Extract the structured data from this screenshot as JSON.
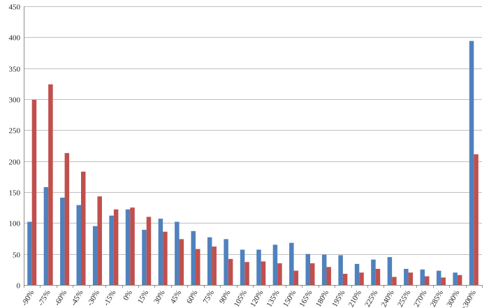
{
  "chart_data": {
    "type": "bar",
    "categories": [
      "-90%",
      "-75%",
      "-60%",
      "-45%",
      "-30%",
      "-15%",
      "0%",
      "15%",
      "30%",
      "45%",
      "60%",
      "75%",
      "90%",
      "105%",
      "120%",
      "135%",
      "150%",
      "165%",
      "180%",
      "195%",
      "210%",
      "225%",
      "240%",
      "255%",
      "270%",
      "285%",
      "300%",
      ">300%"
    ],
    "series": [
      {
        "color": "#4f81bd",
        "values": [
          102,
          158,
          141,
          129,
          95,
          112,
          122,
          89,
          107,
          102,
          87,
          77,
          74,
          57,
          57,
          65,
          68,
          50,
          49,
          48,
          34,
          41,
          45,
          26,
          25,
          23,
          20,
          394
        ]
      },
      {
        "color": "#c0504d",
        "values": [
          299,
          324,
          213,
          183,
          143,
          122,
          125,
          110,
          86,
          74,
          58,
          62,
          42,
          37,
          38,
          35,
          23,
          35,
          29,
          18,
          20,
          26,
          13,
          20,
          14,
          12,
          16,
          211
        ]
      }
    ],
    "ylim": [
      0,
      450
    ],
    "yticks": [
      0,
      50,
      100,
      150,
      200,
      250,
      300,
      350,
      400,
      450
    ],
    "grid": true,
    "legend": "none",
    "xlabel": "",
    "ylabel": "",
    "title": ""
  }
}
